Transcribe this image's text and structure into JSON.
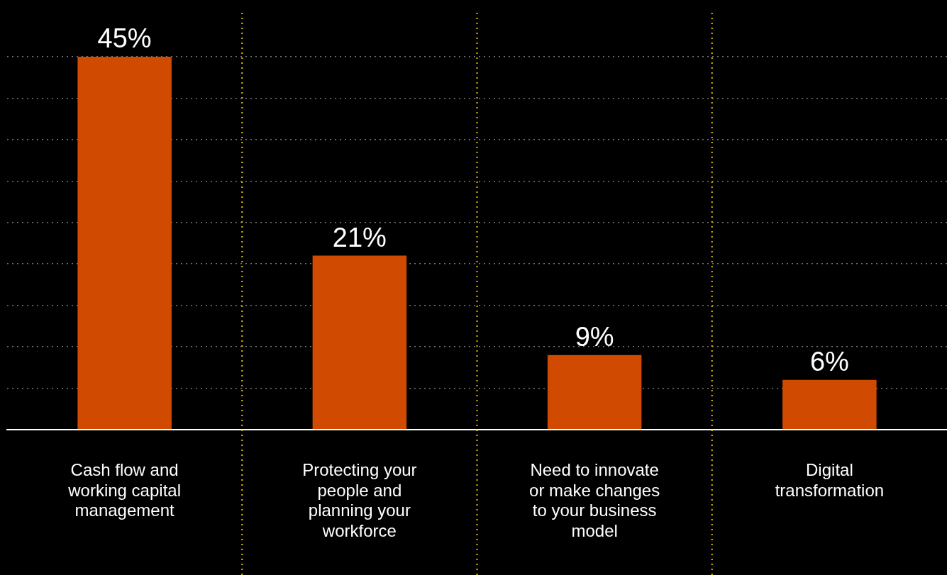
{
  "chart_data": {
    "type": "bar",
    "categories": [
      "Cash flow and working capital management",
      "Protecting your people and planning your workforce",
      "Need to innovate or make changes to your business model",
      "Digital transformation"
    ],
    "values": [
      45,
      21,
      9,
      6
    ],
    "color": "#d04a02",
    "value_labels": [
      "45%",
      "21%",
      "9%",
      "6%"
    ],
    "grid": true,
    "tick_labels": "x"
  }
}
